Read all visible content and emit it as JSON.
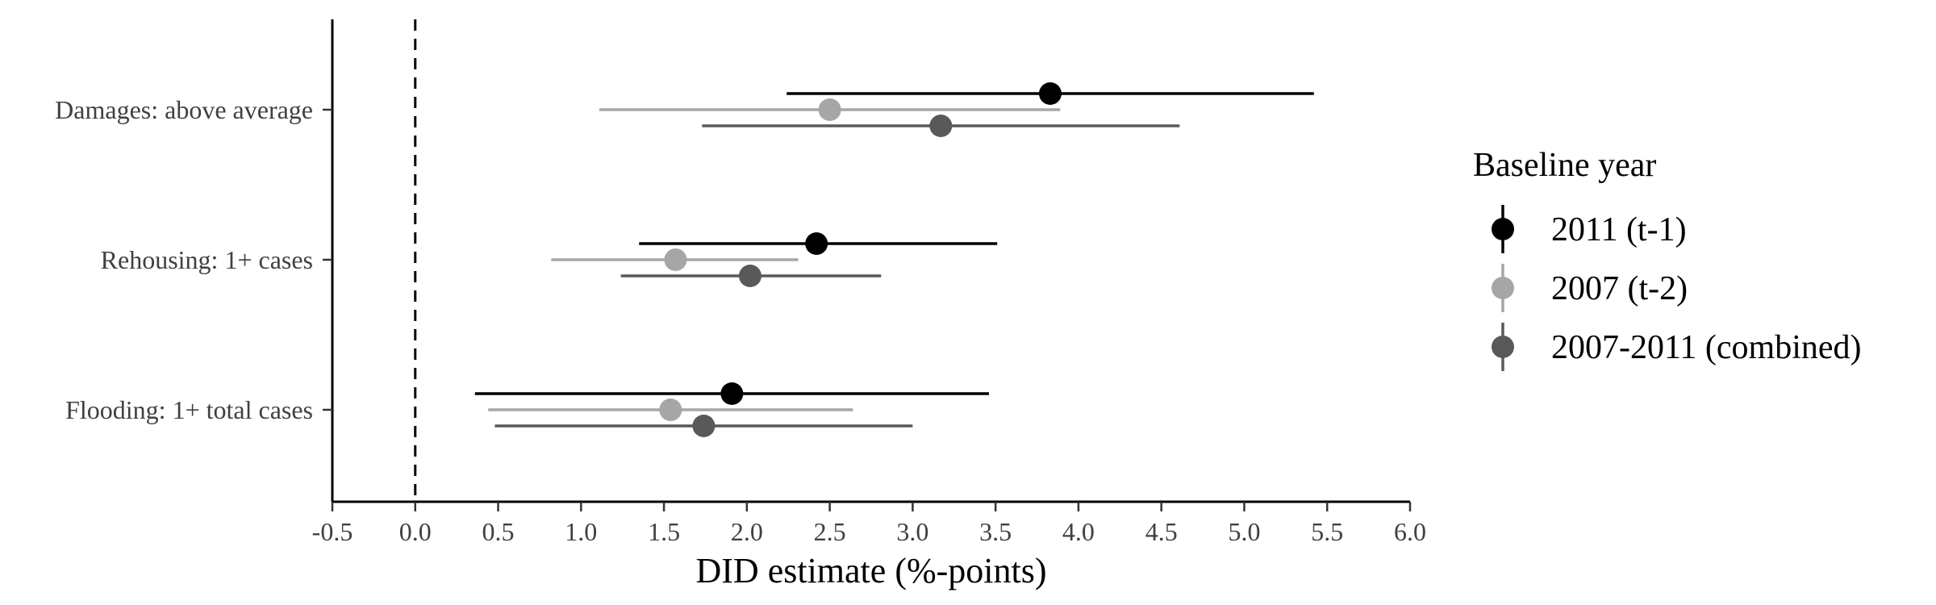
{
  "chart_data": {
    "type": "scatter",
    "subtype": "dot-and-whisker",
    "title": "",
    "xlabel": "DID estimate (%-points)",
    "ylabel": "",
    "xlim": [
      -0.5,
      6.0
    ],
    "xticks": [
      -0.5,
      0.0,
      0.5,
      1.0,
      1.5,
      2.0,
      2.5,
      3.0,
      3.5,
      4.0,
      4.5,
      5.0,
      5.5,
      6.0
    ],
    "xtick_labels": [
      "-0.5",
      "0.0",
      "0.5",
      "1.0",
      "1.5",
      "2.0",
      "2.5",
      "3.0",
      "3.5",
      "4.0",
      "4.5",
      "5.0",
      "5.5",
      "6.0"
    ],
    "reference_line": {
      "x": 0.0,
      "style": "dashed"
    },
    "grid": false,
    "categories": [
      "Damages: above average",
      "Rehousing: 1+ cases",
      "Flooding: 1+ total cases"
    ],
    "legend": {
      "title": "Baseline year",
      "position": "right"
    },
    "series": [
      {
        "name": "2011 (t-1)",
        "color": "#000000",
        "estimates": [
          3.83,
          2.42,
          1.91
        ],
        "ci_low": [
          2.24,
          1.35,
          0.36
        ],
        "ci_high": [
          5.42,
          3.51,
          3.46
        ]
      },
      {
        "name": "2007 (t-2)",
        "color": "#a6a6a6",
        "estimates": [
          2.5,
          1.57,
          1.54
        ],
        "ci_low": [
          1.11,
          0.82,
          0.44
        ],
        "ci_high": [
          3.89,
          2.31,
          2.64
        ]
      },
      {
        "name": "2007-2011 (combined)",
        "color": "#595959",
        "estimates": [
          3.17,
          2.02,
          1.74
        ],
        "ci_low": [
          1.73,
          1.24,
          0.48
        ],
        "ci_high": [
          4.61,
          2.81,
          3.0
        ]
      }
    ]
  }
}
